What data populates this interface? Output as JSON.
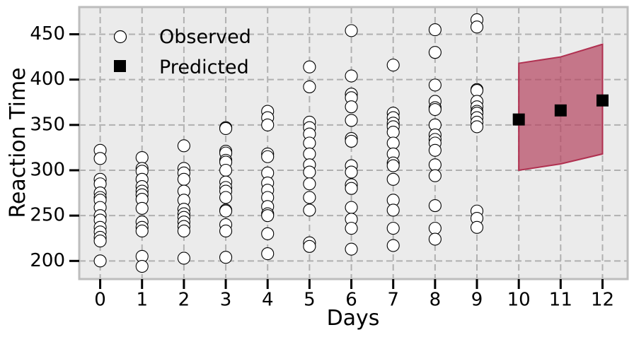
{
  "chart_data": {
    "type": "scatter",
    "xlabel": "Days",
    "ylabel": "Reaction Time",
    "xlim": [
      -0.5,
      12.6
    ],
    "ylim": [
      180,
      480
    ],
    "x_ticks": [
      0,
      1,
      2,
      3,
      4,
      5,
      6,
      7,
      8,
      9,
      10,
      11,
      12
    ],
    "y_ticks": [
      200,
      250,
      300,
      350,
      400,
      450
    ],
    "grid": true,
    "legend_position": "top-left",
    "colors": {
      "background": "#ebebeb",
      "grid": "#b0b0b0",
      "band_fill": "#b5455f",
      "band_stroke": "#b03050",
      "observed_fill": "#ffffff",
      "marker_edge": "#000000",
      "predicted_fill": "#000000"
    },
    "series": [
      {
        "name": "Observed",
        "marker": "circle",
        "points": [
          [
            0,
            322
          ],
          [
            0,
            313
          ],
          [
            0,
            290
          ],
          [
            0,
            285
          ],
          [
            0,
            275
          ],
          [
            0,
            270
          ],
          [
            0,
            267
          ],
          [
            0,
            259
          ],
          [
            0,
            250
          ],
          [
            0,
            245
          ],
          [
            0,
            237
          ],
          [
            0,
            232
          ],
          [
            0,
            226
          ],
          [
            0,
            222
          ],
          [
            0,
            200
          ],
          [
            1,
            314
          ],
          [
            1,
            302
          ],
          [
            1,
            299
          ],
          [
            1,
            290
          ],
          [
            1,
            282
          ],
          [
            1,
            277
          ],
          [
            1,
            273
          ],
          [
            1,
            268
          ],
          [
            1,
            258
          ],
          [
            1,
            243
          ],
          [
            1,
            237
          ],
          [
            1,
            233
          ],
          [
            1,
            205
          ],
          [
            1,
            194
          ],
          [
            2,
            327
          ],
          [
            2,
            302
          ],
          [
            2,
            297
          ],
          [
            2,
            290
          ],
          [
            2,
            277
          ],
          [
            2,
            267
          ],
          [
            2,
            257
          ],
          [
            2,
            252
          ],
          [
            2,
            248
          ],
          [
            2,
            243
          ],
          [
            2,
            238
          ],
          [
            2,
            233
          ],
          [
            2,
            203
          ],
          [
            3,
            347
          ],
          [
            3,
            346
          ],
          [
            3,
            321
          ],
          [
            3,
            319
          ],
          [
            3,
            311
          ],
          [
            3,
            309
          ],
          [
            3,
            300
          ],
          [
            3,
            287
          ],
          [
            3,
            281
          ],
          [
            3,
            277
          ],
          [
            3,
            270
          ],
          [
            3,
            256
          ],
          [
            3,
            255
          ],
          [
            3,
            240
          ],
          [
            3,
            233
          ],
          [
            3,
            204
          ],
          [
            4,
            365
          ],
          [
            4,
            358
          ],
          [
            4,
            350
          ],
          [
            4,
            318
          ],
          [
            4,
            315
          ],
          [
            4,
            297
          ],
          [
            4,
            286
          ],
          [
            4,
            278
          ],
          [
            4,
            270
          ],
          [
            4,
            260
          ],
          [
            4,
            252
          ],
          [
            4,
            250
          ],
          [
            4,
            230
          ],
          [
            4,
            208
          ],
          [
            5,
            414
          ],
          [
            5,
            392
          ],
          [
            5,
            353
          ],
          [
            5,
            347
          ],
          [
            5,
            340
          ],
          [
            5,
            330
          ],
          [
            5,
            318
          ],
          [
            5,
            306
          ],
          [
            5,
            298
          ],
          [
            5,
            285
          ],
          [
            5,
            270
          ],
          [
            5,
            256
          ],
          [
            5,
            220
          ],
          [
            5,
            216
          ],
          [
            6,
            454
          ],
          [
            6,
            404
          ],
          [
            6,
            384
          ],
          [
            6,
            380
          ],
          [
            6,
            370
          ],
          [
            6,
            355
          ],
          [
            6,
            335
          ],
          [
            6,
            332
          ],
          [
            6,
            305
          ],
          [
            6,
            298
          ],
          [
            6,
            284
          ],
          [
            6,
            280
          ],
          [
            6,
            259
          ],
          [
            6,
            246
          ],
          [
            6,
            236
          ],
          [
            6,
            213
          ],
          [
            7,
            416
          ],
          [
            7,
            363
          ],
          [
            7,
            358
          ],
          [
            7,
            352
          ],
          [
            7,
            348
          ],
          [
            7,
            342
          ],
          [
            7,
            330
          ],
          [
            7,
            318
          ],
          [
            7,
            308
          ],
          [
            7,
            305
          ],
          [
            7,
            290
          ],
          [
            7,
            267
          ],
          [
            7,
            256
          ],
          [
            7,
            236
          ],
          [
            7,
            217
          ],
          [
            8,
            455
          ],
          [
            8,
            430
          ],
          [
            8,
            394
          ],
          [
            8,
            376
          ],
          [
            8,
            369
          ],
          [
            8,
            367
          ],
          [
            8,
            350
          ],
          [
            8,
            339
          ],
          [
            8,
            334
          ],
          [
            8,
            330
          ],
          [
            8,
            322
          ],
          [
            8,
            306
          ],
          [
            8,
            294
          ],
          [
            8,
            261
          ],
          [
            8,
            236
          ],
          [
            8,
            224
          ],
          [
            9,
            466
          ],
          [
            9,
            458
          ],
          [
            9,
            389
          ],
          [
            9,
            388
          ],
          [
            9,
            376
          ],
          [
            9,
            370
          ],
          [
            9,
            365
          ],
          [
            9,
            363
          ],
          [
            9,
            358
          ],
          [
            9,
            353
          ],
          [
            9,
            348
          ],
          [
            9,
            255
          ],
          [
            9,
            247
          ],
          [
            9,
            237
          ]
        ]
      },
      {
        "name": "Predicted",
        "marker": "square",
        "points": [
          [
            10,
            356
          ],
          [
            11,
            366
          ],
          [
            12,
            377
          ]
        ]
      }
    ],
    "interval": {
      "x": [
        10,
        11,
        12
      ],
      "lower": [
        300,
        307,
        318
      ],
      "upper": [
        418,
        425,
        439
      ]
    }
  }
}
